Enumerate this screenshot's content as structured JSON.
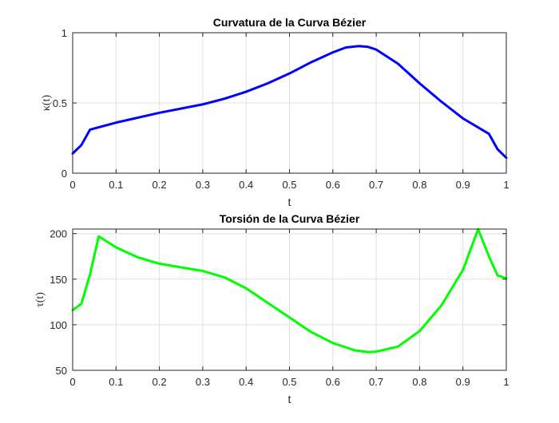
{
  "chart_data": [
    {
      "type": "line",
      "title": "Curvatura de la Curva Bézier",
      "xlabel": "t",
      "ylabel": "κ(t)",
      "xlim": [
        0,
        1
      ],
      "ylim": [
        0,
        1
      ],
      "xticks": [
        "0",
        "0.1",
        "0.2",
        "0.3",
        "0.4",
        "0.5",
        "0.6",
        "0.7",
        "0.8",
        "0.9",
        "1"
      ],
      "yticks": [
        "0",
        "0.5",
        "1"
      ],
      "grid": true,
      "series": [
        {
          "color": "#0000ff",
          "x": [
            0,
            0.02,
            0.04,
            0.1,
            0.2,
            0.3,
            0.35,
            0.4,
            0.45,
            0.5,
            0.55,
            0.6,
            0.63,
            0.66,
            0.68,
            0.7,
            0.75,
            0.8,
            0.85,
            0.9,
            0.96,
            0.98,
            1
          ],
          "y": [
            0.14,
            0.2,
            0.31,
            0.36,
            0.43,
            0.49,
            0.53,
            0.58,
            0.64,
            0.71,
            0.79,
            0.86,
            0.895,
            0.905,
            0.9,
            0.88,
            0.78,
            0.64,
            0.51,
            0.39,
            0.28,
            0.17,
            0.11
          ]
        }
      ]
    },
    {
      "type": "line",
      "title": "Torsión de la Curva Bézier",
      "xlabel": "t",
      "ylabel": "τ(t)",
      "xlim": [
        0,
        1
      ],
      "ylim": [
        50,
        205
      ],
      "xticks": [
        "0",
        "0.1",
        "0.2",
        "0.3",
        "0.4",
        "0.5",
        "0.6",
        "0.7",
        "0.8",
        "0.9",
        "1"
      ],
      "yticks": [
        "50",
        "100",
        "150",
        "200"
      ],
      "grid": true,
      "series": [
        {
          "color": "#00ff00",
          "x": [
            0,
            0.02,
            0.04,
            0.06,
            0.08,
            0.1,
            0.15,
            0.2,
            0.25,
            0.3,
            0.35,
            0.4,
            0.45,
            0.5,
            0.55,
            0.6,
            0.65,
            0.68,
            0.7,
            0.75,
            0.8,
            0.85,
            0.9,
            0.935,
            0.96,
            0.98,
            1
          ],
          "y": [
            116,
            123,
            155,
            197,
            191,
            185,
            174,
            167,
            163,
            159,
            152,
            140,
            124,
            108,
            92,
            80,
            72,
            70,
            70.5,
            76,
            93,
            121,
            160,
            205,
            175,
            154,
            151
          ]
        }
      ]
    }
  ]
}
